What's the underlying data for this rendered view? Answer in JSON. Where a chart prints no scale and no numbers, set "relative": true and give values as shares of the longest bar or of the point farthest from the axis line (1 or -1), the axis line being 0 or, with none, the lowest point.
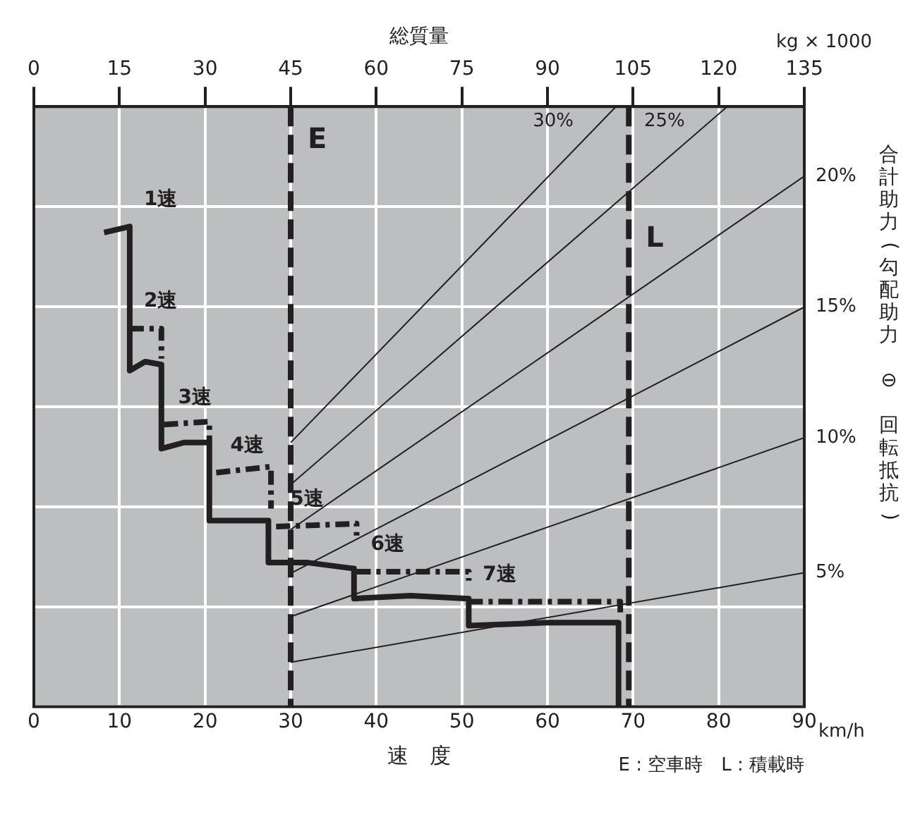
{
  "chart_data": {
    "type": "line",
    "relative": true,
    "xlabel": "速　度",
    "x2label": "総質量",
    "y2label": "合計助力(勾配助力 ⊖ 回転抵抗)",
    "xlim": [
      0,
      90
    ],
    "xticks": [
      0,
      10,
      20,
      30,
      40,
      50,
      60,
      70,
      80,
      90
    ],
    "x2lim": [
      0,
      135
    ],
    "x2ticks": [
      0,
      15,
      30,
      45,
      60,
      75,
      90,
      105,
      120,
      135
    ],
    "grid": true,
    "legend": false,
    "marker": "none",
    "series": [
      {
        "color": "#231f20",
        "line_style": "solid",
        "x": [
          8.2,
          11.2,
          11.2,
          13,
          14.9,
          14.9,
          17.5,
          20.5,
          20.5,
          27.4,
          27.4,
          32,
          37.4,
          37.4,
          44,
          50.8,
          50.8,
          60,
          68.3,
          68.3
        ],
        "values": [
          0.79,
          0.8,
          0.56,
          0.575,
          0.57,
          0.43,
          0.44,
          0.44,
          0.31,
          0.31,
          0.24,
          0.24,
          0.23,
          0.18,
          0.185,
          0.18,
          0.135,
          0.14,
          0.14,
          0
        ]
      },
      {
        "color": "#231f20",
        "line_style": "dashed",
        "x": [
          11.2,
          14.9,
          14.9,
          null,
          15.2,
          20.5,
          20.5,
          null,
          21.3,
          27.7,
          27.7,
          null,
          28.3,
          37.7,
          37.7,
          null,
          37.7,
          50.8,
          50.8,
          null,
          50.8,
          68.5,
          68.5
        ],
        "values": [
          0.63,
          0.63,
          0.58,
          null,
          0.47,
          0.475,
          0.44,
          null,
          0.39,
          0.4,
          0.33,
          null,
          0.3,
          0.305,
          0.285,
          null,
          0.225,
          0.225,
          0.21,
          null,
          0.175,
          0.175,
          0.15
        ]
      },
      {
        "name": "5%",
        "color": "#231f20",
        "line_style": "solid",
        "x": [
          30,
          90
        ],
        "values": [
          0.074,
          0.223
        ]
      },
      {
        "name": "10%",
        "color": "#231f20",
        "line_style": "solid",
        "x": [
          30,
          90
        ],
        "values": [
          0.15,
          0.448
        ]
      },
      {
        "name": "15%",
        "color": "#231f20",
        "line_style": "solid",
        "x": [
          30,
          90
        ],
        "values": [
          0.222,
          0.666
        ]
      },
      {
        "name": "20%",
        "color": "#231f20",
        "line_style": "solid",
        "x": [
          30,
          90
        ],
        "values": [
          0.295,
          0.884
        ]
      },
      {
        "name": "25%",
        "color": "#231f20",
        "line_style": "solid",
        "x": [
          30,
          81
        ],
        "values": [
          0.37,
          1
        ]
      },
      {
        "name": "30%",
        "color": "#231f20",
        "line_style": "solid",
        "x": [
          30,
          68
        ],
        "values": [
          0.44,
          1
        ]
      }
    ],
    "ref_lines": [
      {
        "axis": "x",
        "value": 30,
        "label": "E",
        "color": "#231f20",
        "line_style": "dashed"
      },
      {
        "axis": "x",
        "value": 69.5,
        "label": "L",
        "color": "#231f20",
        "line_style": "dashed"
      }
    ],
    "annotations": [
      "kg × 1000",
      "km/h",
      "E : 空車時　L : 積載時",
      {
        "text": "1速",
        "x": 11.2,
        "y": 0.8
      },
      {
        "text": "2速",
        "x": 11.2,
        "y": 0.63
      },
      {
        "text": "3速",
        "x": 15.2,
        "y": 0.47
      },
      {
        "text": "4速",
        "x": 21.3,
        "y": 0.39
      },
      {
        "text": "5速",
        "x": 28.3,
        "y": 0.3
      },
      {
        "text": "6速",
        "x": 37.7,
        "y": 0.225
      },
      {
        "text": "7速",
        "x": 50.8,
        "y": 0.175
      }
    ]
  }
}
